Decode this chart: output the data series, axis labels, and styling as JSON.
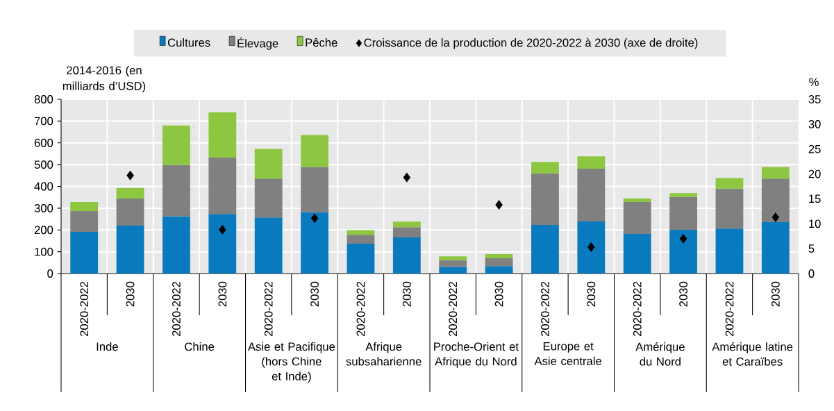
{
  "chart_data": {
    "type": "bar",
    "stacked": true,
    "categories": [
      "2020-2022",
      "2030",
      "2020-2022",
      "2030",
      "2020-2022",
      "2030",
      "2020-2022",
      "2030",
      "2020-2022",
      "2030",
      "2020-2022",
      "2030",
      "2020-2022",
      "2030",
      "2020-2022",
      "2030"
    ],
    "annotations": [
      "Inde",
      "Chine",
      "Asie et Pacifique (hors Chine et Inde)",
      "Afrique subsaharienne",
      "Proche-Orient et Afrique du Nord",
      "Europe et Asie centrale",
      "Amérique du Nord",
      "Amérique latine et Caraïbes"
    ],
    "ylabel": "2014-2016 (en milliards d’USD)",
    "y2label": "%",
    "series": [
      {
        "name": "Cultures",
        "color": "#0a7abf",
        "values": [
          191,
          220,
          263,
          273,
          257,
          281,
          137,
          166,
          30,
          34,
          223,
          239,
          182,
          201,
          206,
          236
        ]
      },
      {
        "name": "Élevage",
        "color": "#808080",
        "values": [
          96,
          124,
          235,
          259,
          179,
          208,
          41,
          47,
          31,
          36,
          237,
          242,
          146,
          150,
          184,
          200
        ]
      },
      {
        "name": "Pêche",
        "color": "#8dc641",
        "values": [
          41,
          49,
          182,
          208,
          136,
          147,
          21,
          25,
          18,
          19,
          52,
          57,
          17,
          18,
          48,
          53
        ]
      },
      {
        "name": "Croissance de la production de 2020-2022 à 2030 (axe de droite)",
        "color": "#000000",
        "type": "scatter",
        "axis": "y2",
        "marker": "diamond",
        "values": [
          null,
          19.7,
          null,
          8.8,
          null,
          11.1,
          null,
          19.3,
          null,
          13.8,
          null,
          5.3,
          null,
          7.0,
          null,
          11.3
        ]
      }
    ],
    "ylim": [
      0,
      800
    ],
    "yticks": [
      0,
      100,
      200,
      300,
      400,
      500,
      600,
      700,
      800
    ],
    "y2lim": [
      0,
      35
    ],
    "y2ticks": [
      0,
      5,
      10,
      15,
      20,
      25,
      30,
      35
    ],
    "grid": true,
    "legend": "top"
  }
}
